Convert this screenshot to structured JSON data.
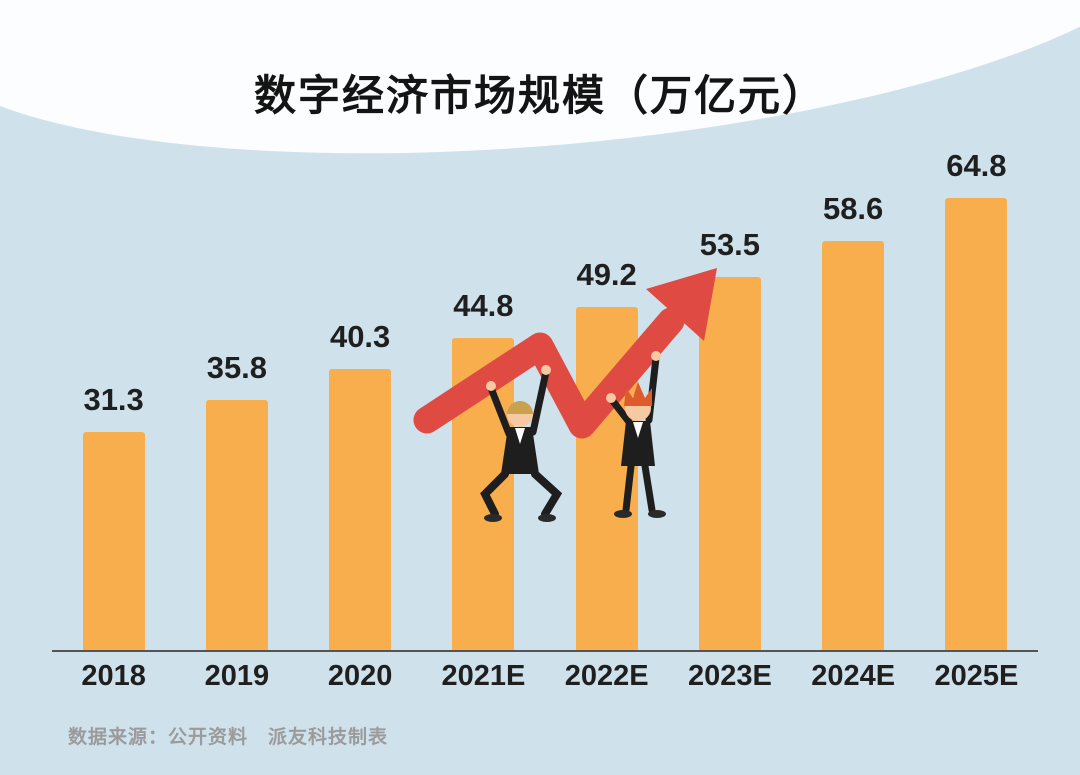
{
  "chart_data": {
    "type": "bar",
    "title": "数字经济市场规模（万亿元）",
    "categories": [
      "2018",
      "2019",
      "2020",
      "2021E",
      "2022E",
      "2023E",
      "2024E",
      "2025E"
    ],
    "values": [
      31.3,
      35.8,
      40.3,
      44.8,
      49.2,
      53.5,
      58.6,
      64.8
    ],
    "xlabel": "",
    "ylabel": "",
    "ylim": [
      0,
      70
    ],
    "grid": false,
    "legend": "none",
    "value_labels": "above bars, one decimal",
    "bar_color": "#F8AE4C"
  },
  "footer": {
    "source": "数据来源：公开资料　派友科技制表"
  },
  "decorations": {
    "background_color": "#CFE2EC",
    "arrow_color": "#DF4A43",
    "elements": [
      "white-top-swoosh",
      "red-growth-arrow",
      "two-businessmen-lifting-arrow"
    ]
  }
}
